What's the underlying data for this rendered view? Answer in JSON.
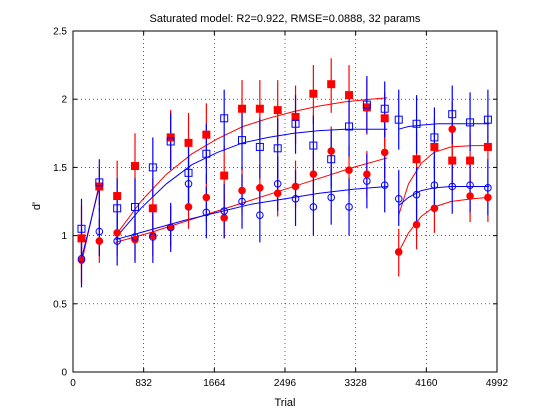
{
  "chart_data": {
    "type": "scatter",
    "title": "Saturated model: R2=0.922, RMSE=0.0888, 32 params",
    "xlabel": "Trial",
    "ylabel": "d'",
    "xlim": [
      0,
      4992
    ],
    "ylim": [
      0,
      2.5
    ],
    "xticks": [
      0,
      832,
      1664,
      2496,
      3328,
      4160,
      4992
    ],
    "yticks": [
      0,
      0.5,
      1,
      1.5,
      2,
      2.5
    ],
    "xtick_labels": [
      "0",
      "832",
      "1664",
      "2496",
      "3328",
      "4160",
      "4992"
    ],
    "ytick_labels": [
      "0",
      "0.5",
      "1",
      "1.5",
      "2",
      "2.5"
    ],
    "grid": true,
    "grid_style": "dotted",
    "series": [
      {
        "color": "#ff0000",
        "marker": "square-filled",
        "points": [
          {
            "x": 100,
            "y": 0.98,
            "lo": 0.75,
            "hi": 1.22
          },
          {
            "x": 310,
            "y": 1.36,
            "lo": 1.22,
            "hi": 1.5
          },
          {
            "x": 520,
            "y": 1.29,
            "lo": 1.1,
            "hi": 1.55
          },
          {
            "x": 730,
            "y": 1.51,
            "lo": 1.25,
            "hi": 1.75
          },
          {
            "x": 940,
            "y": 1.2,
            "lo": 0.98,
            "hi": 1.42
          },
          {
            "x": 1150,
            "y": 1.72,
            "lo": 1.5,
            "hi": 1.92
          },
          {
            "x": 1360,
            "y": 1.68,
            "lo": 1.45,
            "hi": 1.9
          },
          {
            "x": 1570,
            "y": 1.74,
            "lo": 1.52,
            "hi": 1.97
          },
          {
            "x": 1780,
            "y": 1.44,
            "lo": 1.22,
            "hi": 1.66
          },
          {
            "x": 1990,
            "y": 1.93,
            "lo": 1.72,
            "hi": 2.14
          },
          {
            "x": 2200,
            "y": 1.93,
            "lo": 1.72,
            "hi": 2.14
          },
          {
            "x": 2410,
            "y": 1.92,
            "lo": 1.7,
            "hi": 2.14
          },
          {
            "x": 2620,
            "y": 1.87,
            "lo": 1.67,
            "hi": 2.1
          },
          {
            "x": 2830,
            "y": 2.04,
            "lo": 1.82,
            "hi": 2.25
          },
          {
            "x": 3040,
            "y": 2.11,
            "lo": 1.9,
            "hi": 2.3
          },
          {
            "x": 3250,
            "y": 2.03,
            "lo": 1.82,
            "hi": 2.25
          },
          {
            "x": 3460,
            "y": 1.94,
            "lo": 1.74,
            "hi": 2.15
          },
          {
            "x": 3670,
            "y": 1.86,
            "lo": 1.65,
            "hi": 2.05
          },
          {
            "x": 4045,
            "y": 1.56,
            "lo": 1.35,
            "hi": 1.77
          },
          {
            "x": 4255,
            "y": 1.65,
            "lo": 1.42,
            "hi": 1.86
          },
          {
            "x": 4465,
            "y": 1.55,
            "lo": 1.33,
            "hi": 1.77
          },
          {
            "x": 4675,
            "y": 1.55,
            "lo": 1.34,
            "hi": 1.77
          },
          {
            "x": 4885,
            "y": 1.65,
            "lo": 1.45,
            "hi": 1.88
          }
        ]
      },
      {
        "color": "#ff0000",
        "marker": "circle-filled",
        "points": [
          {
            "x": 100,
            "y": 0.82,
            "lo": 0.65,
            "hi": 1.0
          },
          {
            "x": 310,
            "y": 0.96,
            "lo": 0.8,
            "hi": 1.12
          },
          {
            "x": 520,
            "y": 1.02,
            "lo": 0.85,
            "hi": 1.18
          },
          {
            "x": 730,
            "y": 0.97,
            "lo": 0.82,
            "hi": 1.12
          },
          {
            "x": 940,
            "y": 1.0,
            "lo": 0.85,
            "hi": 1.15
          },
          {
            "x": 1150,
            "y": 1.06,
            "lo": 0.92,
            "hi": 1.22
          },
          {
            "x": 1360,
            "y": 1.21,
            "lo": 1.05,
            "hi": 1.38
          },
          {
            "x": 1570,
            "y": 1.28,
            "lo": 1.1,
            "hi": 1.45
          },
          {
            "x": 1780,
            "y": 1.13,
            "lo": 0.98,
            "hi": 1.3
          },
          {
            "x": 1990,
            "y": 1.33,
            "lo": 1.15,
            "hi": 1.5
          },
          {
            "x": 2200,
            "y": 1.35,
            "lo": 1.18,
            "hi": 1.52
          },
          {
            "x": 2410,
            "y": 1.31,
            "lo": 1.14,
            "hi": 1.5
          },
          {
            "x": 2620,
            "y": 1.36,
            "lo": 1.2,
            "hi": 1.55
          },
          {
            "x": 2830,
            "y": 1.45,
            "lo": 1.28,
            "hi": 1.62
          },
          {
            "x": 3040,
            "y": 1.62,
            "lo": 1.45,
            "hi": 1.8
          },
          {
            "x": 3250,
            "y": 1.48,
            "lo": 1.3,
            "hi": 1.66
          },
          {
            "x": 3460,
            "y": 1.45,
            "lo": 1.28,
            "hi": 1.62
          },
          {
            "x": 3670,
            "y": 1.61,
            "lo": 1.42,
            "hi": 1.8
          },
          {
            "x": 3835,
            "y": 0.88,
            "lo": 0.7,
            "hi": 1.05
          },
          {
            "x": 4045,
            "y": 1.08,
            "lo": 0.9,
            "hi": 1.26
          },
          {
            "x": 4255,
            "y": 1.2,
            "lo": 1.02,
            "hi": 1.38
          },
          {
            "x": 4465,
            "y": 1.78,
            "lo": 1.55,
            "hi": 1.98
          },
          {
            "x": 4675,
            "y": 1.29,
            "lo": 1.1,
            "hi": 1.47
          },
          {
            "x": 4885,
            "y": 1.28,
            "lo": 1.1,
            "hi": 1.45
          }
        ]
      },
      {
        "color": "#0000ff",
        "marker": "square-open",
        "points": [
          {
            "x": 100,
            "y": 1.05,
            "lo": 0.82,
            "hi": 1.27
          },
          {
            "x": 310,
            "y": 1.39,
            "lo": 1.18,
            "hi": 1.56
          },
          {
            "x": 520,
            "y": 1.2,
            "lo": 0.98,
            "hi": 1.42
          },
          {
            "x": 730,
            "y": 1.21,
            "lo": 1.0,
            "hi": 1.42
          },
          {
            "x": 940,
            "y": 1.5,
            "lo": 1.28,
            "hi": 1.72
          },
          {
            "x": 1150,
            "y": 1.69,
            "lo": 1.48,
            "hi": 1.9
          },
          {
            "x": 1360,
            "y": 1.46,
            "lo": 1.25,
            "hi": 1.66
          },
          {
            "x": 1570,
            "y": 1.6,
            "lo": 1.38,
            "hi": 1.82
          },
          {
            "x": 1780,
            "y": 1.86,
            "lo": 1.62,
            "hi": 2.07
          },
          {
            "x": 1990,
            "y": 1.7,
            "lo": 1.48,
            "hi": 1.9
          },
          {
            "x": 2200,
            "y": 1.65,
            "lo": 1.42,
            "hi": 1.86
          },
          {
            "x": 2410,
            "y": 1.64,
            "lo": 1.42,
            "hi": 1.86
          },
          {
            "x": 2620,
            "y": 1.82,
            "lo": 1.6,
            "hi": 2.03
          },
          {
            "x": 2830,
            "y": 1.66,
            "lo": 1.45,
            "hi": 1.88
          },
          {
            "x": 3040,
            "y": 1.56,
            "lo": 1.35,
            "hi": 1.78
          },
          {
            "x": 3250,
            "y": 1.8,
            "lo": 1.58,
            "hi": 2.02
          },
          {
            "x": 3460,
            "y": 1.96,
            "lo": 1.75,
            "hi": 2.17
          },
          {
            "x": 3670,
            "y": 1.93,
            "lo": 1.72,
            "hi": 2.13
          },
          {
            "x": 3835,
            "y": 1.85,
            "lo": 1.63,
            "hi": 2.07
          },
          {
            "x": 4045,
            "y": 1.82,
            "lo": 1.6,
            "hi": 2.03
          },
          {
            "x": 4255,
            "y": 1.72,
            "lo": 1.5,
            "hi": 1.94
          },
          {
            "x": 4465,
            "y": 1.89,
            "lo": 1.67,
            "hi": 2.1
          },
          {
            "x": 4675,
            "y": 1.83,
            "lo": 1.62,
            "hi": 2.05
          },
          {
            "x": 4885,
            "y": 1.85,
            "lo": 1.63,
            "hi": 2.07
          }
        ]
      },
      {
        "color": "#0000ff",
        "marker": "circle-open",
        "points": [
          {
            "x": 100,
            "y": 0.83,
            "lo": 0.62,
            "hi": 1.05
          },
          {
            "x": 310,
            "y": 1.03,
            "lo": 0.85,
            "hi": 1.2
          },
          {
            "x": 520,
            "y": 0.96,
            "lo": 0.78,
            "hi": 1.14
          },
          {
            "x": 730,
            "y": 0.99,
            "lo": 0.8,
            "hi": 1.18
          },
          {
            "x": 940,
            "y": 0.99,
            "lo": 0.8,
            "hi": 1.18
          },
          {
            "x": 1150,
            "y": 1.06,
            "lo": 0.88,
            "hi": 1.24
          },
          {
            "x": 1360,
            "y": 1.38,
            "lo": 1.18,
            "hi": 1.58
          },
          {
            "x": 1570,
            "y": 1.17,
            "lo": 0.98,
            "hi": 1.36
          },
          {
            "x": 1780,
            "y": 1.18,
            "lo": 0.98,
            "hi": 1.38
          },
          {
            "x": 1990,
            "y": 1.25,
            "lo": 1.05,
            "hi": 1.45
          },
          {
            "x": 2200,
            "y": 1.15,
            "lo": 0.95,
            "hi": 1.35
          },
          {
            "x": 2410,
            "y": 1.38,
            "lo": 1.18,
            "hi": 1.58
          },
          {
            "x": 2620,
            "y": 1.27,
            "lo": 1.07,
            "hi": 1.48
          },
          {
            "x": 2830,
            "y": 1.21,
            "lo": 1.0,
            "hi": 1.42
          },
          {
            "x": 3040,
            "y": 1.28,
            "lo": 1.08,
            "hi": 1.48
          },
          {
            "x": 3250,
            "y": 1.21,
            "lo": 1.0,
            "hi": 1.42
          },
          {
            "x": 3460,
            "y": 1.4,
            "lo": 1.2,
            "hi": 1.6
          },
          {
            "x": 3670,
            "y": 1.37,
            "lo": 1.17,
            "hi": 1.58
          },
          {
            "x": 3835,
            "y": 1.27,
            "lo": 1.07,
            "hi": 1.48
          },
          {
            "x": 4045,
            "y": 1.3,
            "lo": 1.1,
            "hi": 1.5
          },
          {
            "x": 4255,
            "y": 1.37,
            "lo": 1.17,
            "hi": 1.58
          },
          {
            "x": 4465,
            "y": 1.36,
            "lo": 1.16,
            "hi": 1.57
          },
          {
            "x": 4675,
            "y": 1.37,
            "lo": 1.17,
            "hi": 1.58
          },
          {
            "x": 4885,
            "y": 1.35,
            "lo": 1.15,
            "hi": 1.56
          }
        ]
      }
    ],
    "fit_lines": [
      {
        "color": "#ff0000",
        "points": [
          [
            100,
            0.8
          ],
          [
            310,
            1.38
          ]
        ]
      },
      {
        "color": "#0000ff",
        "points": [
          [
            100,
            0.83
          ],
          [
            310,
            1.36
          ]
        ]
      },
      {
        "color": "#ff0000",
        "points": [
          [
            500,
            1.0
          ],
          [
            800,
            1.25
          ],
          [
            1100,
            1.45
          ],
          [
            1400,
            1.6
          ],
          [
            1700,
            1.71
          ],
          [
            2000,
            1.8
          ],
          [
            2300,
            1.86
          ],
          [
            2600,
            1.91
          ],
          [
            2900,
            1.95
          ],
          [
            3200,
            1.98
          ],
          [
            3500,
            2.0
          ],
          [
            3700,
            2.01
          ]
        ]
      },
      {
        "color": "#0000ff",
        "points": [
          [
            500,
            0.98
          ],
          [
            800,
            1.2
          ],
          [
            1100,
            1.38
          ],
          [
            1400,
            1.52
          ],
          [
            1700,
            1.61
          ],
          [
            2000,
            1.68
          ],
          [
            2300,
            1.72
          ],
          [
            2600,
            1.75
          ],
          [
            2900,
            1.77
          ],
          [
            3200,
            1.78
          ],
          [
            3500,
            1.78
          ],
          [
            3700,
            1.78
          ]
        ]
      },
      {
        "color": "#ff0000",
        "points": [
          [
            500,
            0.95
          ],
          [
            900,
            1.02
          ],
          [
            1300,
            1.1
          ],
          [
            1700,
            1.18
          ],
          [
            2100,
            1.26
          ],
          [
            2500,
            1.34
          ],
          [
            2900,
            1.42
          ],
          [
            3300,
            1.5
          ],
          [
            3700,
            1.57
          ]
        ]
      },
      {
        "color": "#0000ff",
        "points": [
          [
            500,
            0.97
          ],
          [
            900,
            1.04
          ],
          [
            1300,
            1.11
          ],
          [
            1700,
            1.17
          ],
          [
            2100,
            1.23
          ],
          [
            2500,
            1.27
          ],
          [
            2900,
            1.31
          ],
          [
            3300,
            1.34
          ],
          [
            3700,
            1.36
          ]
        ]
      },
      {
        "color": "#ff0000",
        "points": [
          [
            3835,
            1.15
          ],
          [
            3950,
            1.38
          ],
          [
            4100,
            1.53
          ],
          [
            4250,
            1.61
          ],
          [
            4450,
            1.65
          ],
          [
            4700,
            1.66
          ],
          [
            4900,
            1.66
          ]
        ]
      },
      {
        "color": "#0000ff",
        "points": [
          [
            3835,
            1.22
          ],
          [
            3950,
            1.28
          ],
          [
            4100,
            1.33
          ],
          [
            4250,
            1.35
          ],
          [
            4450,
            1.36
          ],
          [
            4700,
            1.36
          ],
          [
            4900,
            1.36
          ]
        ]
      },
      {
        "color": "#ff0000",
        "points": [
          [
            3835,
            0.88
          ],
          [
            3950,
            1.02
          ],
          [
            4100,
            1.14
          ],
          [
            4250,
            1.21
          ],
          [
            4450,
            1.25
          ],
          [
            4700,
            1.27
          ],
          [
            4900,
            1.28
          ]
        ]
      },
      {
        "color": "#0000ff",
        "points": [
          [
            3835,
            1.78
          ],
          [
            3950,
            1.8
          ],
          [
            4100,
            1.81
          ],
          [
            4300,
            1.82
          ],
          [
            4600,
            1.82
          ],
          [
            4900,
            1.82
          ]
        ]
      }
    ]
  }
}
